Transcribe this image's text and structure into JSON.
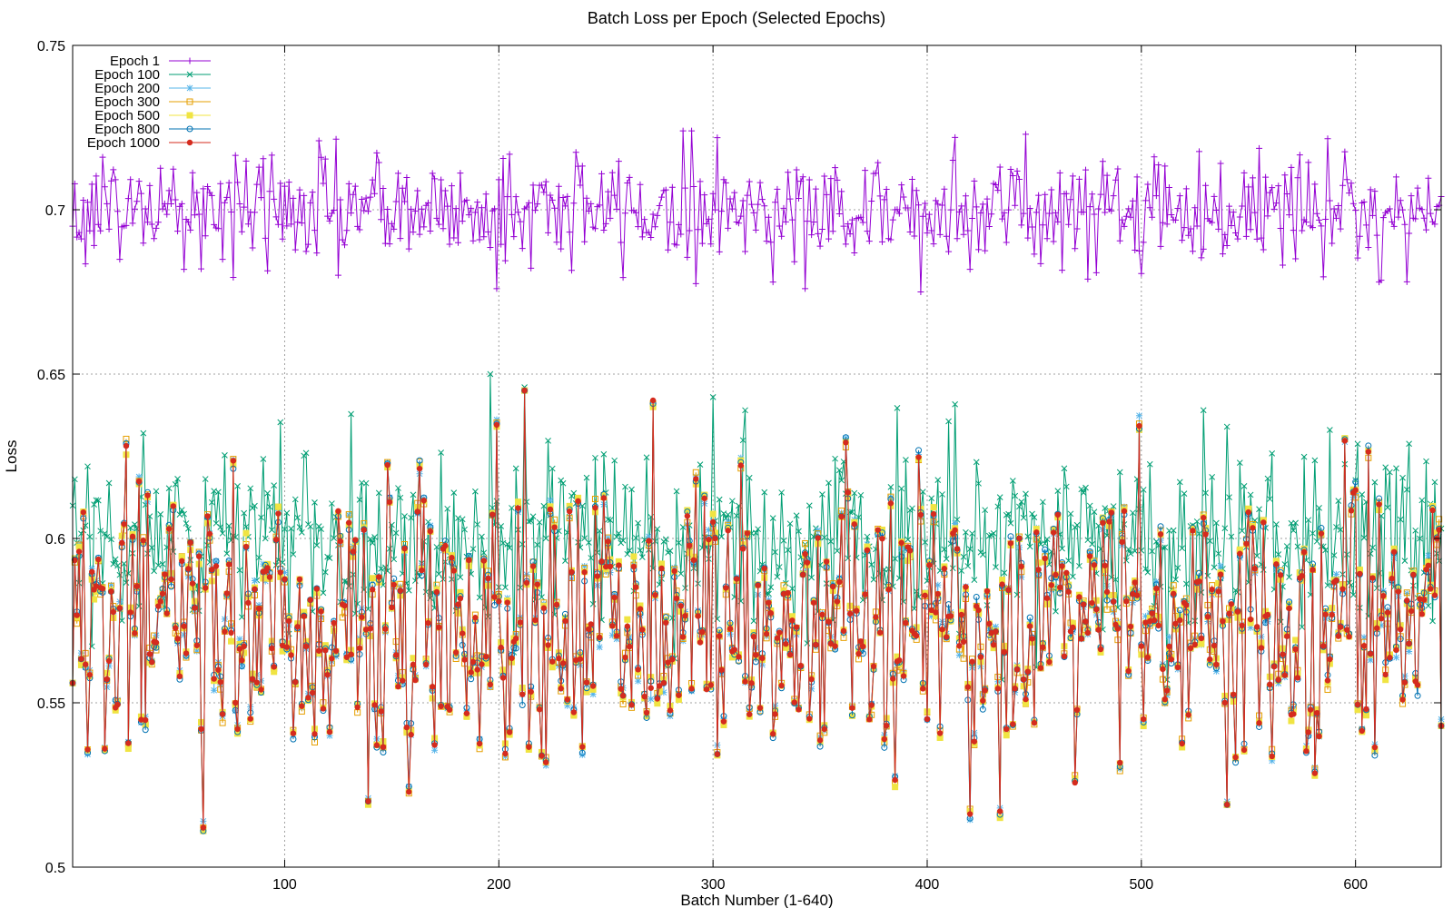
{
  "chart_data": {
    "type": "line",
    "title": "Batch Loss per Epoch (Selected Epochs)",
    "xlabel": "Batch Number (1-640)",
    "ylabel": "Loss",
    "xlim": [
      1,
      640
    ],
    "ylim": [
      0.5,
      0.75
    ],
    "x_ticks": [
      100,
      200,
      300,
      400,
      500,
      600
    ],
    "y_ticks": [
      0.5,
      0.55,
      0.6,
      0.65,
      0.7,
      0.75
    ],
    "x_tick_labels": [
      "100",
      "200",
      "300",
      "400",
      "500",
      "600"
    ],
    "y_tick_labels": [
      "0.5",
      "0.55",
      "0.6",
      "0.65",
      "0.7",
      "0.75"
    ],
    "grid": true,
    "legend_position": "top-left",
    "n_points": 640,
    "series": [
      {
        "name": "Epoch 1",
        "color": "#9400d3",
        "marker": "plus",
        "approx_mean": 0.7,
        "approx_range": [
          0.675,
          0.724
        ],
        "points": [
          [
            1,
            0.695
          ],
          [
            15,
            0.716
          ],
          [
            61,
            0.682
          ],
          [
            116,
            0.721
          ],
          [
            199,
            0.676
          ],
          [
            290,
            0.724
          ],
          [
            397,
            0.675
          ],
          [
            413,
            0.722
          ],
          [
            611,
            0.678
          ],
          [
            640,
            0.704
          ]
        ]
      },
      {
        "name": "Epoch 100",
        "color": "#009e73",
        "marker": "x",
        "approx_mean": 0.6,
        "approx_range": [
          0.557,
          0.65
        ],
        "points": [
          [
            1,
            0.61
          ],
          [
            34,
            0.632
          ],
          [
            110,
            0.626
          ],
          [
            196,
            0.65
          ],
          [
            212,
            0.646
          ],
          [
            300,
            0.643
          ],
          [
            315,
            0.639
          ],
          [
            435,
            0.557
          ],
          [
            540,
            0.634
          ],
          [
            588,
            0.633
          ],
          [
            640,
            0.603
          ]
        ]
      },
      {
        "name": "Epoch 200",
        "color": "#56b4e9",
        "marker": "star",
        "approx_mean": 0.575,
        "approx_range": [
          0.513,
          0.645
        ],
        "points": [
          [
            1,
            0.556
          ],
          [
            62,
            0.514
          ],
          [
            139,
            0.521
          ],
          [
            212,
            0.645
          ],
          [
            272,
            0.641
          ],
          [
            434,
            0.518
          ],
          [
            540,
            0.52
          ],
          [
            640,
            0.545
          ]
        ]
      },
      {
        "name": "Epoch 300",
        "color": "#e69f00",
        "marker": "square-open",
        "approx_mean": 0.575,
        "approx_range": [
          0.512,
          0.645
        ],
        "points": [
          [
            1,
            0.556
          ],
          [
            62,
            0.512
          ],
          [
            139,
            0.52
          ],
          [
            212,
            0.645
          ],
          [
            272,
            0.641
          ],
          [
            434,
            0.516
          ],
          [
            540,
            0.519
          ],
          [
            640,
            0.543
          ]
        ]
      },
      {
        "name": "Epoch 500",
        "color": "#f0e442",
        "marker": "square-filled",
        "approx_mean": 0.575,
        "approx_range": [
          0.511,
          0.645
        ],
        "points": [
          [
            1,
            0.556
          ],
          [
            62,
            0.511
          ],
          [
            139,
            0.519
          ],
          [
            212,
            0.645
          ],
          [
            272,
            0.64
          ],
          [
            434,
            0.515
          ],
          [
            540,
            0.519
          ],
          [
            640,
            0.543
          ]
        ]
      },
      {
        "name": "Epoch 800",
        "color": "#0072b2",
        "marker": "circle-open",
        "approx_mean": 0.575,
        "approx_range": [
          0.511,
          0.645
        ],
        "points": [
          [
            1,
            0.556
          ],
          [
            62,
            0.511
          ],
          [
            139,
            0.52
          ],
          [
            212,
            0.645
          ],
          [
            272,
            0.641
          ],
          [
            434,
            0.516
          ],
          [
            540,
            0.519
          ],
          [
            640,
            0.543
          ]
        ]
      },
      {
        "name": "Epoch 1000",
        "color": "#d52b1e",
        "marker": "circle-filled",
        "approx_mean": 0.575,
        "approx_range": [
          0.512,
          0.645
        ],
        "points": [
          [
            1,
            0.556
          ],
          [
            62,
            0.512
          ],
          [
            139,
            0.52
          ],
          [
            212,
            0.645
          ],
          [
            272,
            0.642
          ],
          [
            434,
            0.517
          ],
          [
            540,
            0.519
          ],
          [
            640,
            0.543
          ]
        ]
      }
    ]
  }
}
